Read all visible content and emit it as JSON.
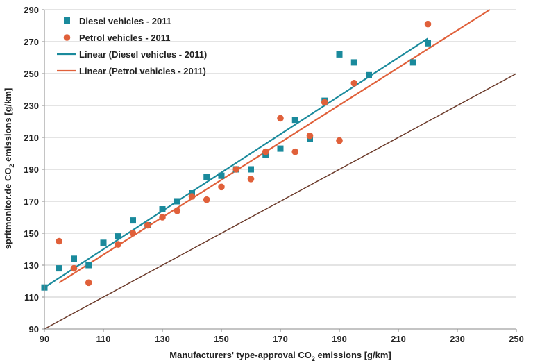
{
  "chart_data": {
    "type": "scatter",
    "title": "",
    "xlabel": {
      "pre": "Manufacturers' type-approval CO",
      "sub": "2",
      "post": " emissions [g/km]"
    },
    "ylabel": {
      "pre": "spritmonitor.de CO",
      "sub": "2",
      "post": " emissions [g/km]"
    },
    "xlim": [
      90,
      250
    ],
    "ylim": [
      90,
      290
    ],
    "xticks": [
      90,
      110,
      130,
      150,
      170,
      190,
      210,
      230,
      250
    ],
    "yticks": [
      90,
      110,
      130,
      150,
      170,
      190,
      210,
      230,
      250,
      270,
      290
    ],
    "grid": "horizontal",
    "legend_position": "top-left",
    "colors": {
      "diesel": "#1a8a9c",
      "petrol": "#e0603a",
      "reference": "#6b3a2a"
    },
    "series": [
      {
        "name": "Diesel vehicles - 2011",
        "marker": "square",
        "color": "#1a8a9c",
        "points": [
          [
            90,
            116
          ],
          [
            95,
            128
          ],
          [
            100,
            134
          ],
          [
            105,
            130
          ],
          [
            110,
            144
          ],
          [
            115,
            148
          ],
          [
            120,
            158
          ],
          [
            125,
            155
          ],
          [
            130,
            165
          ],
          [
            135,
            170
          ],
          [
            140,
            175
          ],
          [
            145,
            185
          ],
          [
            150,
            186
          ],
          [
            155,
            190
          ],
          [
            160,
            190
          ],
          [
            165,
            199
          ],
          [
            170,
            203
          ],
          [
            175,
            221
          ],
          [
            180,
            209
          ],
          [
            185,
            233
          ],
          [
            190,
            262
          ],
          [
            195,
            257
          ],
          [
            200,
            249
          ],
          [
            215,
            257
          ],
          [
            220,
            269
          ]
        ]
      },
      {
        "name": "Petrol vehicles - 2011",
        "marker": "circle",
        "color": "#e0603a",
        "points": [
          [
            95,
            145
          ],
          [
            100,
            128
          ],
          [
            105,
            119
          ],
          [
            115,
            143
          ],
          [
            120,
            150
          ],
          [
            125,
            155
          ],
          [
            130,
            160
          ],
          [
            135,
            164
          ],
          [
            140,
            173
          ],
          [
            145,
            171
          ],
          [
            150,
            179
          ],
          [
            155,
            190
          ],
          [
            160,
            184
          ],
          [
            165,
            201
          ],
          [
            170,
            222
          ],
          [
            175,
            201
          ],
          [
            180,
            211
          ],
          [
            185,
            232
          ],
          [
            190,
            208
          ],
          [
            195,
            244
          ],
          [
            220,
            281
          ]
        ]
      },
      {
        "name": "Linear (Diesel vehicles - 2011)",
        "type": "trendline",
        "color": "#1a8a9c",
        "from": [
          90,
          116
        ],
        "to": [
          220,
          272
        ]
      },
      {
        "name": "Linear (Petrol vehicles - 2011)",
        "type": "trendline",
        "color": "#e0603a",
        "from": [
          95,
          119
        ],
        "to": [
          241,
          290
        ]
      },
      {
        "name": "reference",
        "type": "line",
        "color": "#6b3a2a",
        "from": [
          90,
          90
        ],
        "to": [
          250,
          250
        ]
      }
    ],
    "legend": [
      {
        "label": "Diesel vehicles - 2011",
        "symbol": "square",
        "color": "#1a8a9c"
      },
      {
        "label": "Petrol vehicles - 2011",
        "symbol": "circle",
        "color": "#e0603a"
      },
      {
        "label": "Linear (Diesel vehicles - 2011)",
        "symbol": "line",
        "color": "#1a8a9c"
      },
      {
        "label": "Linear (Petrol vehicles - 2011)",
        "symbol": "line",
        "color": "#e0603a"
      }
    ]
  }
}
